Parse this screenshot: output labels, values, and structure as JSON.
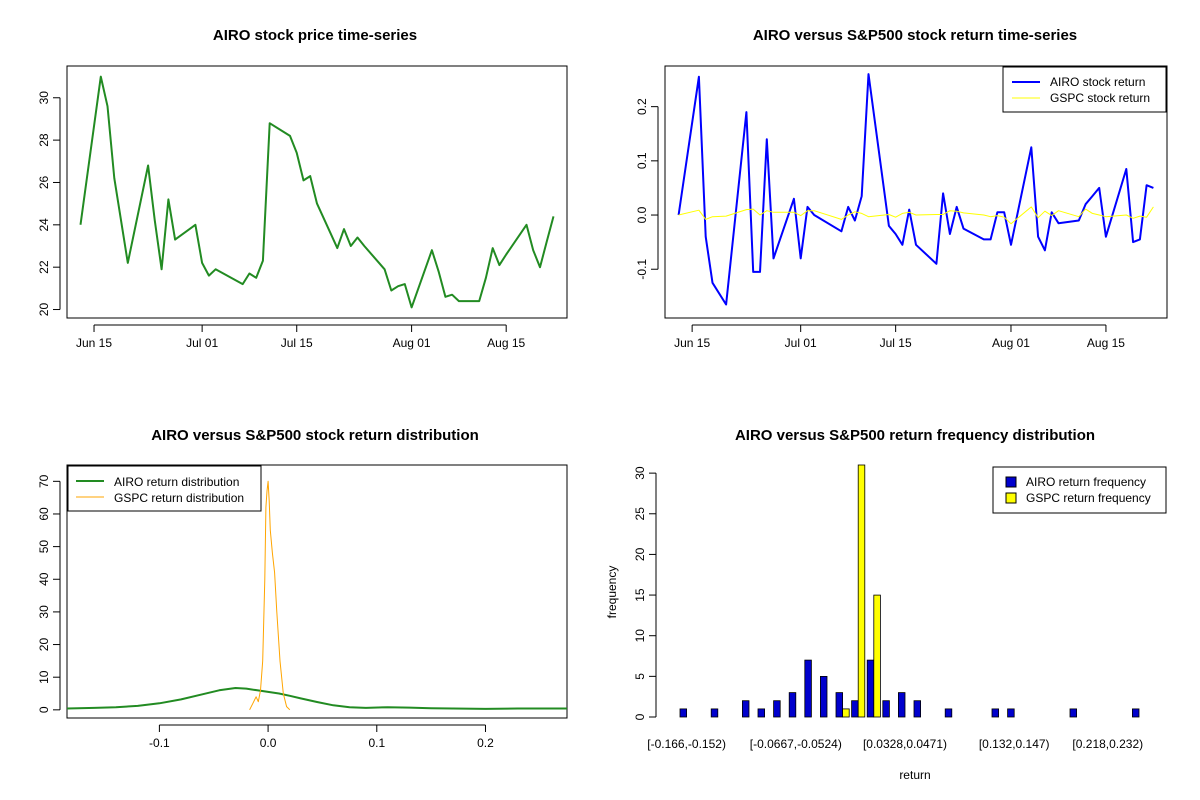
{
  "chart_data": [
    {
      "type": "line",
      "title": "AIRO stock price time-series",
      "x_tick_labels": [
        "Jun 15",
        "Jul 01",
        "Jul 15",
        "Aug 01",
        "Aug 15"
      ],
      "x_tick_dates": [
        "2025-06-15",
        "2025-07-01",
        "2025-07-15",
        "2025-08-01",
        "2025-08-15"
      ],
      "xlim": [
        "2025-06-11",
        "2025-08-24"
      ],
      "y_ticks": [
        20,
        22,
        24,
        26,
        28,
        30
      ],
      "ylim": [
        19.6,
        31.5
      ],
      "colors": {
        "price": "#228b22"
      },
      "series": [
        {
          "x": [
            "2025-06-13",
            "2025-06-16",
            "2025-06-17",
            "2025-06-18",
            "2025-06-20",
            "2025-06-23",
            "2025-06-24",
            "2025-06-25",
            "2025-06-26",
            "2025-06-27",
            "2025-06-30",
            "2025-07-01",
            "2025-07-02",
            "2025-07-03",
            "2025-07-07",
            "2025-07-08",
            "2025-07-09",
            "2025-07-10",
            "2025-07-11",
            "2025-07-14",
            "2025-07-15",
            "2025-07-16",
            "2025-07-17",
            "2025-07-18",
            "2025-07-21",
            "2025-07-22",
            "2025-07-23",
            "2025-07-24",
            "2025-07-25",
            "2025-07-28",
            "2025-07-29",
            "2025-07-30",
            "2025-07-31",
            "2025-08-01",
            "2025-08-04",
            "2025-08-05",
            "2025-08-06",
            "2025-08-07",
            "2025-08-08",
            "2025-08-11",
            "2025-08-12",
            "2025-08-13",
            "2025-08-14",
            "2025-08-15",
            "2025-08-18",
            "2025-08-19",
            "2025-08-20",
            "2025-08-21",
            "2025-08-22"
          ],
          "values": [
            24.0,
            31.0,
            29.6,
            26.2,
            22.2,
            26.8,
            24.2,
            21.9,
            25.2,
            23.3,
            24.0,
            22.2,
            21.6,
            21.9,
            21.2,
            21.7,
            21.5,
            22.3,
            28.8,
            28.2,
            27.4,
            26.1,
            26.3,
            25.0,
            22.9,
            23.8,
            23.0,
            23.4,
            23.0,
            21.9,
            20.9,
            21.1,
            21.2,
            20.1,
            22.8,
            21.8,
            20.6,
            20.7,
            20.4,
            20.4,
            21.5,
            22.9,
            22.1,
            22.6,
            24.0,
            22.8,
            22.0,
            23.2,
            24.4
          ]
        }
      ]
    },
    {
      "type": "line",
      "title": "AIRO versus S&P500 stock return time-series",
      "x_tick_labels": [
        "Jun 15",
        "Jul 01",
        "Jul 15",
        "Aug 01",
        "Aug 15"
      ],
      "x_tick_dates": [
        "2025-06-15",
        "2025-07-01",
        "2025-07-15",
        "2025-08-01",
        "2025-08-15"
      ],
      "xlim": [
        "2025-06-11",
        "2025-08-24"
      ],
      "y_ticks": [
        -0.1,
        0.0,
        0.1,
        0.2
      ],
      "ylim": [
        -0.19,
        0.275
      ],
      "legend": "top-right",
      "series": [
        {
          "name": "AIRO stock return",
          "color": "#0000ff",
          "x": [
            "2025-06-13",
            "2025-06-16",
            "2025-06-17",
            "2025-06-18",
            "2025-06-20",
            "2025-06-23",
            "2025-06-24",
            "2025-06-25",
            "2025-06-26",
            "2025-06-27",
            "2025-06-30",
            "2025-07-01",
            "2025-07-02",
            "2025-07-03",
            "2025-07-07",
            "2025-07-08",
            "2025-07-09",
            "2025-07-10",
            "2025-07-11",
            "2025-07-14",
            "2025-07-15",
            "2025-07-16",
            "2025-07-17",
            "2025-07-18",
            "2025-07-21",
            "2025-07-22",
            "2025-07-23",
            "2025-07-24",
            "2025-07-25",
            "2025-07-28",
            "2025-07-29",
            "2025-07-30",
            "2025-07-31",
            "2025-08-01",
            "2025-08-04",
            "2025-08-05",
            "2025-08-06",
            "2025-08-07",
            "2025-08-08",
            "2025-08-11",
            "2025-08-12",
            "2025-08-13",
            "2025-08-14",
            "2025-08-15",
            "2025-08-18",
            "2025-08-19",
            "2025-08-20",
            "2025-08-21",
            "2025-08-22"
          ],
          "values": [
            0.0,
            0.255,
            -0.04,
            -0.125,
            -0.165,
            0.19,
            -0.105,
            -0.105,
            0.14,
            -0.08,
            0.03,
            -0.08,
            0.015,
            0.0,
            -0.03,
            0.015,
            -0.01,
            0.035,
            0.26,
            -0.02,
            -0.035,
            -0.055,
            0.01,
            -0.055,
            -0.09,
            0.04,
            -0.035,
            0.015,
            -0.025,
            -0.045,
            -0.045,
            0.005,
            0.005,
            -0.055,
            0.125,
            -0.04,
            -0.065,
            0.005,
            -0.015,
            -0.01,
            0.02,
            0.035,
            0.05,
            -0.04,
            0.085,
            -0.05,
            -0.045,
            0.055,
            0.05
          ]
        },
        {
          "name": "GSPC stock return",
          "color": "#ffff00",
          "x": [
            "2025-06-13",
            "2025-06-16",
            "2025-06-17",
            "2025-06-18",
            "2025-06-20",
            "2025-06-23",
            "2025-06-24",
            "2025-06-25",
            "2025-06-26",
            "2025-06-27",
            "2025-06-30",
            "2025-07-01",
            "2025-07-02",
            "2025-07-03",
            "2025-07-07",
            "2025-07-08",
            "2025-07-09",
            "2025-07-10",
            "2025-07-11",
            "2025-07-14",
            "2025-07-15",
            "2025-07-16",
            "2025-07-17",
            "2025-07-18",
            "2025-07-21",
            "2025-07-22",
            "2025-07-23",
            "2025-07-24",
            "2025-07-25",
            "2025-07-28",
            "2025-07-29",
            "2025-07-30",
            "2025-07-31",
            "2025-08-01",
            "2025-08-04",
            "2025-08-05",
            "2025-08-06",
            "2025-08-07",
            "2025-08-08",
            "2025-08-11",
            "2025-08-12",
            "2025-08-13",
            "2025-08-14",
            "2025-08-15",
            "2025-08-18",
            "2025-08-19",
            "2025-08-20",
            "2025-08-21",
            "2025-08-22"
          ],
          "values": [
            0.0,
            0.009,
            -0.008,
            -0.003,
            -0.002,
            0.01,
            0.011,
            0.0,
            0.008,
            0.005,
            0.005,
            -0.001,
            0.008,
            0.008,
            -0.008,
            0.0,
            0.006,
            0.003,
            -0.003,
            0.001,
            -0.004,
            0.003,
            0.005,
            0.0,
            0.001,
            0.001,
            0.008,
            0.007,
            0.004,
            0.0,
            -0.003,
            -0.001,
            -0.004,
            -0.016,
            0.015,
            -0.005,
            0.007,
            -0.001,
            0.008,
            -0.003,
            0.011,
            0.003,
            0.0,
            -0.003,
            0.0,
            -0.006,
            -0.002,
            -0.004,
            0.015
          ]
        }
      ]
    },
    {
      "type": "line",
      "title": "AIRO versus S&P500 stock return distribution",
      "x_ticks": [
        -0.1,
        0.0,
        0.1,
        0.2
      ],
      "x_tick_labels": [
        "-0.1",
        "0.0",
        "0.1",
        "0.2"
      ],
      "xlim": [
        -0.185,
        0.275
      ],
      "y_ticks": [
        0,
        10,
        20,
        30,
        40,
        50,
        60,
        70
      ],
      "ylim": [
        -2.5,
        75
      ],
      "legend": "top-left",
      "series": [
        {
          "name": "AIRO return distribution",
          "color": "#228b22",
          "x": [
            -0.185,
            -0.16,
            -0.14,
            -0.12,
            -0.1,
            -0.08,
            -0.06,
            -0.045,
            -0.03,
            -0.02,
            -0.01,
            0.0,
            0.01,
            0.02,
            0.03,
            0.045,
            0.06,
            0.075,
            0.09,
            0.11,
            0.13,
            0.15,
            0.17,
            0.2,
            0.23,
            0.275
          ],
          "values": [
            0.4,
            0.6,
            0.8,
            1.2,
            2.0,
            3.2,
            4.8,
            6.0,
            6.7,
            6.5,
            6.0,
            5.5,
            5.0,
            4.3,
            3.5,
            2.4,
            1.4,
            0.8,
            0.6,
            0.8,
            0.7,
            0.5,
            0.4,
            0.3,
            0.4,
            0.4
          ]
        },
        {
          "name": "GSPC return distribution",
          "color": "#ffa500",
          "x": [
            -0.017,
            -0.014,
            -0.011,
            -0.009,
            -0.007,
            -0.005,
            -0.003,
            -0.002,
            -0.001,
            0.0,
            0.001,
            0.002,
            0.004,
            0.006,
            0.008,
            0.011,
            0.014,
            0.017,
            0.02
          ],
          "values": [
            0.0,
            2.0,
            4.0,
            2.5,
            6.0,
            15.0,
            40.0,
            62.0,
            67.0,
            70.0,
            64.0,
            55.0,
            48.0,
            42.0,
            30.0,
            15.0,
            5.0,
            1.0,
            0.0
          ]
        }
      ]
    },
    {
      "type": "bar",
      "title": "AIRO versus S&P500 return frequency distribution",
      "xlabel": "return",
      "ylabel": "frequency",
      "x_tick_labels": [
        "[-0.166,-0.152)",
        "[-0.0667,-0.0524)",
        "[0.0328,0.0471)",
        "[0.132,0.147)",
        "[0.218,0.232)"
      ],
      "x_tick_label_bins": [
        0,
        7,
        14,
        21,
        27
      ],
      "bin_count": 30,
      "y_ticks": [
        0,
        5,
        10,
        15,
        20,
        25,
        30
      ],
      "ylim": [
        0,
        31
      ],
      "legend": "top-right",
      "series": [
        {
          "name": "AIRO return frequency",
          "color": "#0000cd",
          "values": [
            1,
            0,
            1,
            0,
            2,
            1,
            2,
            3,
            7,
            5,
            3,
            2,
            7,
            2,
            3,
            2,
            0,
            1,
            0,
            0,
            1,
            1,
            0,
            0,
            0,
            1,
            0,
            0,
            0,
            1
          ]
        },
        {
          "name": "GSPC return frequency",
          "color": "#ffff00",
          "values": [
            0,
            0,
            0,
            0,
            0,
            0,
            0,
            0,
            0,
            0,
            1,
            31,
            15,
            0,
            0,
            0,
            0,
            0,
            0,
            0,
            0,
            0,
            0,
            0,
            0,
            0,
            0,
            0,
            0,
            0
          ]
        }
      ]
    }
  ]
}
